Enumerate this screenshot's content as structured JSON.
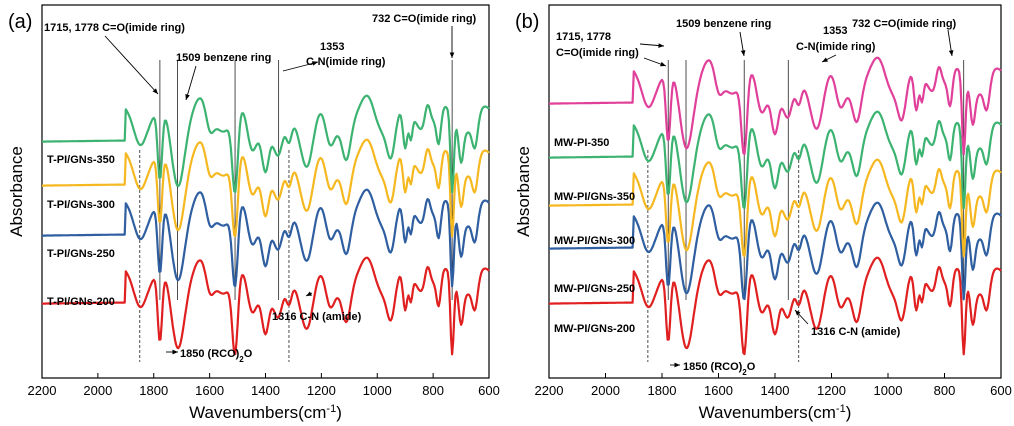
{
  "chart_data": [
    {
      "type": "line",
      "panel": "(a)",
      "xlabel": "Wavenumbers(cm",
      "xlabel_sup": "-1",
      "xlabel_end": ")",
      "ylabel": "Absorbance",
      "xlim": [
        2200,
        600
      ],
      "x_reversed": true,
      "xticks": [
        "2200",
        "2000",
        "1800",
        "1600",
        "1400",
        "1200",
        "1000",
        "800",
        "600"
      ],
      "xtick_values": [
        2200,
        2000,
        1800,
        1600,
        1400,
        1200,
        1000,
        800,
        600
      ],
      "y_ticks_shown": false,
      "series": [
        {
          "name": "T-PI/GNs-200",
          "color": "#e02020"
        },
        {
          "name": "T-PI/GNs-250",
          "color": "#2f5fa0"
        },
        {
          "name": "T-PI/GNs-300",
          "color": "#f5b820"
        },
        {
          "name": "T-PI/GNs-350",
          "color": "#3cb371"
        }
      ],
      "annotations": [
        {
          "text": "1715, 1778 C=O(imide ring)"
        },
        {
          "text": "1509 benzene ring"
        },
        {
          "text": "1353"
        },
        {
          "text": "C-N(imide ring)"
        },
        {
          "text": "732 C=O(imide ring)"
        },
        {
          "text": "1316 C-N  (amide)"
        },
        {
          "text": "1850 (RCO)",
          "sub": "2",
          "end": "O"
        }
      ],
      "reference_lines": [
        1850,
        1778,
        1715,
        1509,
        1353,
        1316,
        732
      ]
    },
    {
      "type": "line",
      "panel": "(b)",
      "xlabel": "Wavenumbers(cm",
      "xlabel_sup": "-1",
      "xlabel_end": ")",
      "ylabel": "Absorbance",
      "xlim": [
        2200,
        600
      ],
      "x_reversed": true,
      "xticks": [
        "2200",
        "2000",
        "1800",
        "1600",
        "1400",
        "1200",
        "1000",
        "800",
        "600"
      ],
      "xtick_values": [
        2200,
        2000,
        1800,
        1600,
        1400,
        1200,
        1000,
        800,
        600
      ],
      "y_ticks_shown": false,
      "series": [
        {
          "name": "MW-PI/GNs-200",
          "color": "#e02020"
        },
        {
          "name": "MW-PI/GNs-250",
          "color": "#2f5fa0"
        },
        {
          "name": "MW-PI/GNs-300",
          "color": "#f5b820"
        },
        {
          "name": "MW-PI/GNs-350",
          "color": "#3cb371"
        },
        {
          "name": "MW-PI-350",
          "color": "#e0409a"
        }
      ],
      "annotations": [
        {
          "text": "1715, 1778"
        },
        {
          "text": "C=O(imide ring)"
        },
        {
          "text": "1509 benzene ring"
        },
        {
          "text": "1353"
        },
        {
          "text": "C-N(imide ring)"
        },
        {
          "text": "732 C=O(imide ring)"
        },
        {
          "text": "1316 C-N  (amide)"
        },
        {
          "text": "1850 (RCO)",
          "sub": "2",
          "end": "O"
        }
      ],
      "reference_lines": [
        1850,
        1778,
        1715,
        1509,
        1353,
        1316,
        732
      ]
    }
  ]
}
